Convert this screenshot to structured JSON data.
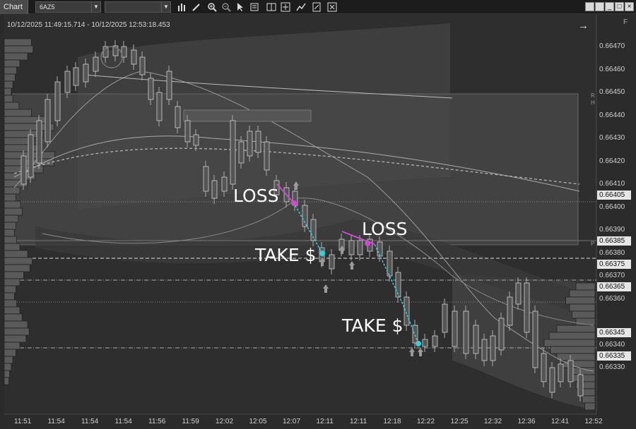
{
  "toolbar": {
    "tab_label": "Chart",
    "instrument": "6AZ5",
    "second_combo": "",
    "tools": [
      "bar-chart-icon",
      "pencil-icon",
      "zoom-in-icon",
      "zoom-out-icon",
      "cursor-icon",
      "properties-icon",
      "crosshair-icon",
      "line-icon",
      "template-icon",
      "close-icon"
    ],
    "window_buttons": [
      "stacked-icon",
      "restore-icon",
      "maximize-icon",
      "close-window-icon"
    ]
  },
  "chart": {
    "range": "10/12/2025 11:49:15.714 - 10/12/2025 12:53:18.453",
    "f_label": "F",
    "r_label": "R",
    "h_label": "H",
    "p_label": "P",
    "annotations": [
      {
        "text": "LOSS"
      },
      {
        "text": "TAKE $"
      },
      {
        "text": "LOSS"
      },
      {
        "text": "TAKE $"
      }
    ],
    "price_ticks": [
      "0.66470",
      "0.66460",
      "0.66450",
      "0.66440",
      "0.66430",
      "0.66420",
      "0.66410",
      "0.66400",
      "0.66390",
      "0.66380",
      "0.66370",
      "0.66360",
      "0.66340",
      "0.66330"
    ],
    "price_tags": [
      "0.66405",
      "0.66385",
      "0.66375",
      "0.66365",
      "0.66345",
      "0.66335"
    ],
    "time_ticks": [
      "11:51",
      "11:54",
      "11:54",
      "11:54",
      "11:56",
      "11:59",
      "12:02",
      "12:05",
      "12:07",
      "12:11",
      "12:11",
      "12:18",
      "12:22",
      "12:25",
      "12:32",
      "12:36",
      "12:41",
      "12:52"
    ]
  }
}
